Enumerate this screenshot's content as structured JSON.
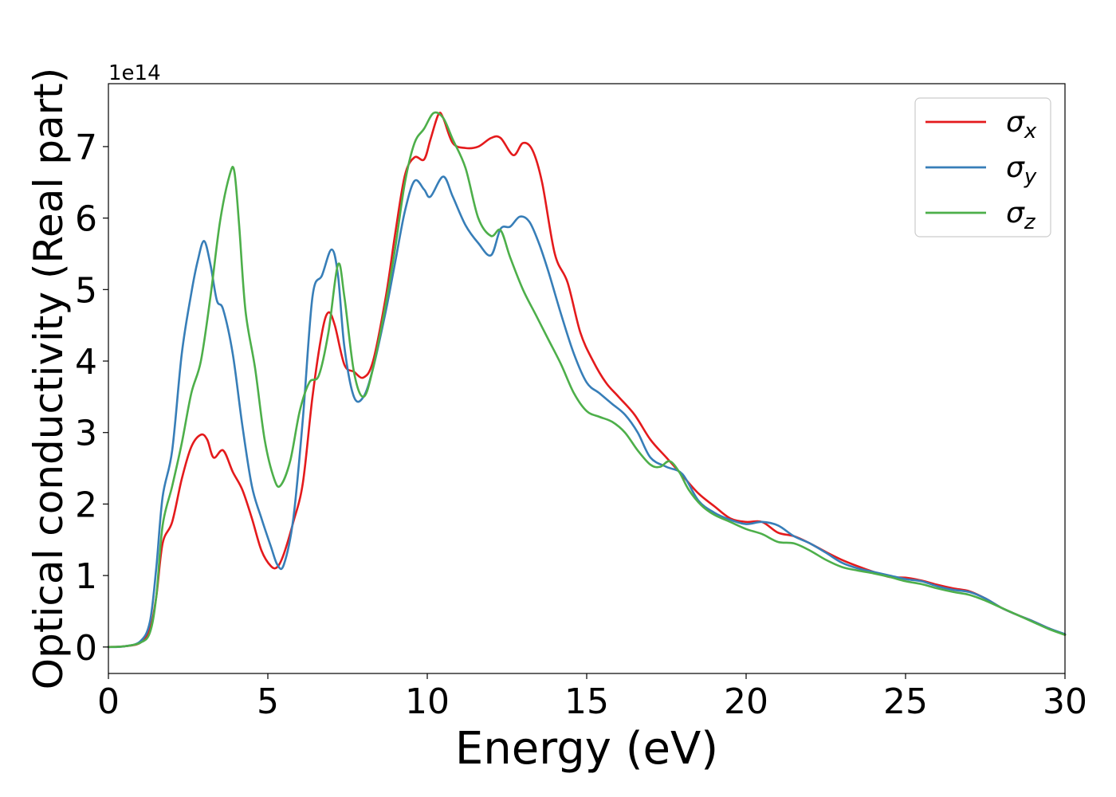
{
  "chart_data": {
    "type": "line",
    "title": "",
    "xlabel": "Energy (eV)",
    "ylabel": "Optical conductivity (Real part)",
    "y_offset_label": "1e14",
    "xlim": [
      0,
      30
    ],
    "ylim": [
      -0.37,
      7.88
    ],
    "xticks": [
      0,
      5,
      10,
      15,
      20,
      25,
      30
    ],
    "yticks": [
      0,
      1,
      2,
      3,
      4,
      5,
      6,
      7
    ],
    "grid": false,
    "legend_position": "top-right",
    "series": [
      {
        "name": "σx",
        "legend_base": "σ",
        "legend_sub": "x",
        "color": "#e41a1c",
        "points": [
          [
            0,
            0
          ],
          [
            0.5,
            0.01
          ],
          [
            1.0,
            0.06
          ],
          [
            1.3,
            0.25
          ],
          [
            1.5,
            0.7
          ],
          [
            1.7,
            1.45
          ],
          [
            2.0,
            1.75
          ],
          [
            2.3,
            2.35
          ],
          [
            2.6,
            2.8
          ],
          [
            2.9,
            2.97
          ],
          [
            3.1,
            2.9
          ],
          [
            3.3,
            2.65
          ],
          [
            3.6,
            2.75
          ],
          [
            3.9,
            2.45
          ],
          [
            4.2,
            2.2
          ],
          [
            4.5,
            1.8
          ],
          [
            4.8,
            1.35
          ],
          [
            5.1,
            1.13
          ],
          [
            5.3,
            1.12
          ],
          [
            5.5,
            1.3
          ],
          [
            5.8,
            1.75
          ],
          [
            6.1,
            2.3
          ],
          [
            6.4,
            3.5
          ],
          [
            6.7,
            4.4
          ],
          [
            6.9,
            4.68
          ],
          [
            7.1,
            4.5
          ],
          [
            7.4,
            3.95
          ],
          [
            7.7,
            3.85
          ],
          [
            8.0,
            3.77
          ],
          [
            8.3,
            4.0
          ],
          [
            8.7,
            4.9
          ],
          [
            9.0,
            5.8
          ],
          [
            9.3,
            6.6
          ],
          [
            9.6,
            6.85
          ],
          [
            9.9,
            6.82
          ],
          [
            10.1,
            7.1
          ],
          [
            10.35,
            7.45
          ],
          [
            10.5,
            7.4
          ],
          [
            10.8,
            7.05
          ],
          [
            11.2,
            6.98
          ],
          [
            11.6,
            7.0
          ],
          [
            12.0,
            7.12
          ],
          [
            12.3,
            7.12
          ],
          [
            12.7,
            6.88
          ],
          [
            13.0,
            7.05
          ],
          [
            13.3,
            6.95
          ],
          [
            13.6,
            6.5
          ],
          [
            14.0,
            5.5
          ],
          [
            14.4,
            5.1
          ],
          [
            14.8,
            4.4
          ],
          [
            15.2,
            4.0
          ],
          [
            15.6,
            3.7
          ],
          [
            16.0,
            3.5
          ],
          [
            16.5,
            3.25
          ],
          [
            17.0,
            2.9
          ],
          [
            17.5,
            2.65
          ],
          [
            18.0,
            2.4
          ],
          [
            18.5,
            2.15
          ],
          [
            19.0,
            1.97
          ],
          [
            19.5,
            1.8
          ],
          [
            20.0,
            1.75
          ],
          [
            20.5,
            1.75
          ],
          [
            21.0,
            1.6
          ],
          [
            21.5,
            1.55
          ],
          [
            22.0,
            1.45
          ],
          [
            22.5,
            1.33
          ],
          [
            23.0,
            1.22
          ],
          [
            23.5,
            1.13
          ],
          [
            24.0,
            1.05
          ],
          [
            24.5,
            0.98
          ],
          [
            25.0,
            0.97
          ],
          [
            25.5,
            0.93
          ],
          [
            26.0,
            0.87
          ],
          [
            26.5,
            0.82
          ],
          [
            27.0,
            0.78
          ],
          [
            27.5,
            0.68
          ],
          [
            28.0,
            0.55
          ],
          [
            28.5,
            0.45
          ],
          [
            29.0,
            0.36
          ],
          [
            29.5,
            0.26
          ],
          [
            30.0,
            0.17
          ]
        ]
      },
      {
        "name": "σy",
        "legend_base": "σ",
        "legend_sub": "y",
        "color": "#377eb8",
        "points": [
          [
            0,
            0
          ],
          [
            0.5,
            0.01
          ],
          [
            1.0,
            0.08
          ],
          [
            1.3,
            0.35
          ],
          [
            1.5,
            1.1
          ],
          [
            1.7,
            2.1
          ],
          [
            2.0,
            2.75
          ],
          [
            2.3,
            4.1
          ],
          [
            2.6,
            4.95
          ],
          [
            2.8,
            5.4
          ],
          [
            3.0,
            5.68
          ],
          [
            3.2,
            5.35
          ],
          [
            3.4,
            4.85
          ],
          [
            3.6,
            4.72
          ],
          [
            3.9,
            4.1
          ],
          [
            4.2,
            3.1
          ],
          [
            4.5,
            2.25
          ],
          [
            4.8,
            1.8
          ],
          [
            5.1,
            1.4
          ],
          [
            5.3,
            1.15
          ],
          [
            5.5,
            1.15
          ],
          [
            5.8,
            1.8
          ],
          [
            6.1,
            3.2
          ],
          [
            6.4,
            4.9
          ],
          [
            6.7,
            5.2
          ],
          [
            7.0,
            5.56
          ],
          [
            7.2,
            5.2
          ],
          [
            7.4,
            4.2
          ],
          [
            7.7,
            3.5
          ],
          [
            8.0,
            3.5
          ],
          [
            8.3,
            3.9
          ],
          [
            8.7,
            4.7
          ],
          [
            9.0,
            5.4
          ],
          [
            9.3,
            6.1
          ],
          [
            9.6,
            6.52
          ],
          [
            9.9,
            6.4
          ],
          [
            10.1,
            6.3
          ],
          [
            10.5,
            6.58
          ],
          [
            10.8,
            6.3
          ],
          [
            11.2,
            5.9
          ],
          [
            11.6,
            5.65
          ],
          [
            12.0,
            5.48
          ],
          [
            12.3,
            5.85
          ],
          [
            12.6,
            5.88
          ],
          [
            12.9,
            6.02
          ],
          [
            13.2,
            5.95
          ],
          [
            13.5,
            5.65
          ],
          [
            13.8,
            5.25
          ],
          [
            14.2,
            4.65
          ],
          [
            14.6,
            4.1
          ],
          [
            15.0,
            3.7
          ],
          [
            15.4,
            3.55
          ],
          [
            15.8,
            3.4
          ],
          [
            16.2,
            3.25
          ],
          [
            16.6,
            3.0
          ],
          [
            17.0,
            2.65
          ],
          [
            17.5,
            2.52
          ],
          [
            18.0,
            2.42
          ],
          [
            18.5,
            2.05
          ],
          [
            19.0,
            1.88
          ],
          [
            19.5,
            1.78
          ],
          [
            20.0,
            1.72
          ],
          [
            20.5,
            1.75
          ],
          [
            21.0,
            1.7
          ],
          [
            21.5,
            1.55
          ],
          [
            22.0,
            1.45
          ],
          [
            22.5,
            1.32
          ],
          [
            23.0,
            1.18
          ],
          [
            23.5,
            1.1
          ],
          [
            24.0,
            1.05
          ],
          [
            24.5,
            1.0
          ],
          [
            25.0,
            0.95
          ],
          [
            25.5,
            0.92
          ],
          [
            26.0,
            0.85
          ],
          [
            26.5,
            0.8
          ],
          [
            27.0,
            0.77
          ],
          [
            27.5,
            0.68
          ],
          [
            28.0,
            0.55
          ],
          [
            28.5,
            0.45
          ],
          [
            29.0,
            0.36
          ],
          [
            29.5,
            0.26
          ],
          [
            30.0,
            0.18
          ]
        ]
      },
      {
        "name": "σz",
        "legend_base": "σ",
        "legend_sub": "z",
        "color": "#4daf4a",
        "points": [
          [
            0,
            0
          ],
          [
            0.5,
            0.01
          ],
          [
            1.0,
            0.06
          ],
          [
            1.3,
            0.2
          ],
          [
            1.5,
            0.7
          ],
          [
            1.7,
            1.7
          ],
          [
            2.0,
            2.25
          ],
          [
            2.3,
            2.85
          ],
          [
            2.6,
            3.55
          ],
          [
            2.9,
            4.0
          ],
          [
            3.2,
            4.9
          ],
          [
            3.5,
            5.95
          ],
          [
            3.8,
            6.6
          ],
          [
            3.95,
            6.65
          ],
          [
            4.1,
            5.9
          ],
          [
            4.3,
            4.7
          ],
          [
            4.6,
            3.9
          ],
          [
            4.9,
            2.9
          ],
          [
            5.2,
            2.35
          ],
          [
            5.4,
            2.26
          ],
          [
            5.7,
            2.6
          ],
          [
            6.0,
            3.3
          ],
          [
            6.3,
            3.7
          ],
          [
            6.6,
            3.8
          ],
          [
            6.9,
            4.4
          ],
          [
            7.2,
            5.35
          ],
          [
            7.4,
            4.9
          ],
          [
            7.7,
            3.85
          ],
          [
            8.0,
            3.5
          ],
          [
            8.3,
            3.9
          ],
          [
            8.7,
            4.8
          ],
          [
            9.0,
            5.6
          ],
          [
            9.3,
            6.5
          ],
          [
            9.6,
            7.05
          ],
          [
            9.9,
            7.25
          ],
          [
            10.2,
            7.47
          ],
          [
            10.5,
            7.4
          ],
          [
            10.8,
            7.1
          ],
          [
            11.2,
            6.7
          ],
          [
            11.6,
            6.0
          ],
          [
            12.0,
            5.75
          ],
          [
            12.3,
            5.83
          ],
          [
            12.6,
            5.45
          ],
          [
            13.0,
            5.0
          ],
          [
            13.4,
            4.65
          ],
          [
            13.8,
            4.3
          ],
          [
            14.2,
            3.95
          ],
          [
            14.6,
            3.55
          ],
          [
            15.0,
            3.3
          ],
          [
            15.4,
            3.22
          ],
          [
            15.8,
            3.15
          ],
          [
            16.2,
            3.0
          ],
          [
            16.6,
            2.75
          ],
          [
            17.0,
            2.55
          ],
          [
            17.3,
            2.52
          ],
          [
            17.6,
            2.6
          ],
          [
            17.9,
            2.45
          ],
          [
            18.2,
            2.2
          ],
          [
            18.6,
            1.98
          ],
          [
            19.0,
            1.85
          ],
          [
            19.5,
            1.75
          ],
          [
            20.0,
            1.65
          ],
          [
            20.5,
            1.58
          ],
          [
            21.0,
            1.47
          ],
          [
            21.5,
            1.45
          ],
          [
            22.0,
            1.35
          ],
          [
            22.5,
            1.22
          ],
          [
            23.0,
            1.12
          ],
          [
            23.5,
            1.07
          ],
          [
            24.0,
            1.03
          ],
          [
            24.5,
            0.98
          ],
          [
            25.0,
            0.92
          ],
          [
            25.5,
            0.88
          ],
          [
            26.0,
            0.82
          ],
          [
            26.5,
            0.77
          ],
          [
            27.0,
            0.73
          ],
          [
            27.5,
            0.65
          ],
          [
            28.0,
            0.55
          ],
          [
            28.5,
            0.45
          ],
          [
            29.0,
            0.35
          ],
          [
            29.5,
            0.25
          ],
          [
            30.0,
            0.17
          ]
        ]
      }
    ]
  }
}
